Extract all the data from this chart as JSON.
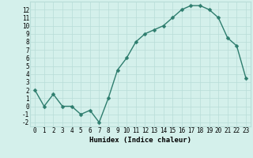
{
  "x": [
    0,
    1,
    2,
    3,
    4,
    5,
    6,
    7,
    8,
    9,
    10,
    11,
    12,
    13,
    14,
    15,
    16,
    17,
    18,
    19,
    20,
    21,
    22,
    23
  ],
  "y": [
    2,
    0,
    1.5,
    0,
    0,
    -1,
    -0.5,
    -2,
    1,
    4.5,
    6,
    8,
    9,
    9.5,
    10,
    11,
    12,
    12.5,
    12.5,
    12,
    11,
    8.5,
    7.5,
    3.5
  ],
  "line_color": "#2e7d6e",
  "marker_color": "#2e7d6e",
  "bg_color": "#d4f0eb",
  "grid_color": "#b8ddd8",
  "xlabel": "Humidex (Indice chaleur)",
  "xlim": [
    -0.5,
    23.5
  ],
  "ylim": [
    -2.5,
    13.0
  ],
  "xticks": [
    0,
    1,
    2,
    3,
    4,
    5,
    6,
    7,
    8,
    9,
    10,
    11,
    12,
    13,
    14,
    15,
    16,
    17,
    18,
    19,
    20,
    21,
    22,
    23
  ],
  "yticks": [
    -2,
    -1,
    0,
    1,
    2,
    3,
    4,
    5,
    6,
    7,
    8,
    9,
    10,
    11,
    12
  ],
  "xlabel_fontsize": 6.5,
  "tick_fontsize": 5.5,
  "marker_size": 2.5,
  "line_width": 1.0
}
